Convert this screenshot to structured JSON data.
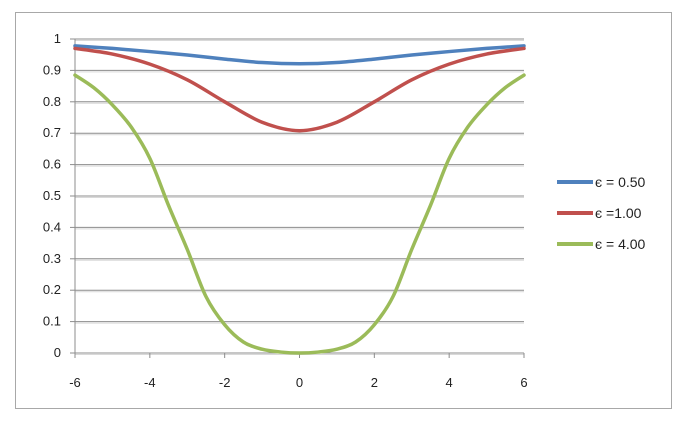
{
  "chart_data": {
    "type": "line",
    "title": "",
    "xlabel": "",
    "ylabel": "",
    "xlim": [
      -6,
      6
    ],
    "ylim": [
      0,
      1
    ],
    "x_ticks": [
      "-6",
      "-4",
      "-2",
      "0",
      "2",
      "4",
      "6"
    ],
    "y_ticks": [
      "0",
      "0.1",
      "0.2",
      "0.3",
      "0.4",
      "0.5",
      "0.6",
      "0.7",
      "0.8",
      "0.9",
      "1"
    ],
    "grid": true,
    "legend_position": "right",
    "series": [
      {
        "name": "є = 0.50",
        "color": "#4f81bd",
        "x": [
          -6,
          -5,
          -4,
          -3,
          -2,
          -1,
          0,
          1,
          2,
          3,
          4,
          5,
          6
        ],
        "y": [
          0.978,
          0.97,
          0.96,
          0.949,
          0.936,
          0.925,
          0.921,
          0.925,
          0.936,
          0.949,
          0.96,
          0.97,
          0.978
        ]
      },
      {
        "name": "є =1.00",
        "color": "#c0504d",
        "x": [
          -6,
          -5,
          -4,
          -3,
          -2,
          -1,
          0,
          1,
          2,
          3,
          4,
          5,
          6
        ],
        "y": [
          0.97,
          0.952,
          0.92,
          0.87,
          0.8,
          0.735,
          0.708,
          0.735,
          0.8,
          0.87,
          0.92,
          0.952,
          0.97
        ]
      },
      {
        "name": "є = 4.00",
        "color": "#9bbb59",
        "x": [
          -6,
          -5.5,
          -5,
          -4.5,
          -4,
          -3.5,
          -3,
          -2.5,
          -2,
          -1.5,
          -1,
          -0.5,
          0,
          0.5,
          1,
          1.5,
          2,
          2.5,
          3,
          3.5,
          4,
          4.5,
          5,
          5.5,
          6
        ],
        "y": [
          0.885,
          0.845,
          0.79,
          0.72,
          0.62,
          0.47,
          0.33,
          0.18,
          0.09,
          0.035,
          0.012,
          0.003,
          0.0,
          0.003,
          0.012,
          0.035,
          0.09,
          0.18,
          0.33,
          0.47,
          0.62,
          0.72,
          0.79,
          0.845,
          0.885
        ]
      }
    ]
  }
}
